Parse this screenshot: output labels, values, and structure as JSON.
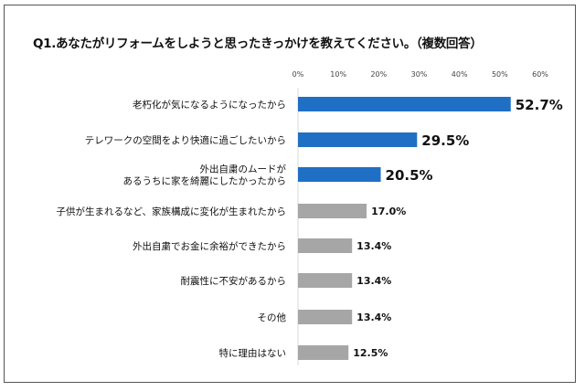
{
  "chart_data": {
    "type": "bar",
    "orientation": "horizontal",
    "title": "Q1.あなたがリフォームをしようと思ったきっかけを教えてください。（複数回答）",
    "categories": [
      [
        "老朽化が気になるようになったから"
      ],
      [
        "テレワークの空間をより快適に過ごしたいから"
      ],
      [
        "外出自粛のムードが",
        "あるうちに家を綺麗にしたかったから"
      ],
      [
        "子供が生まれるなど、家族構成に変化が生まれたから"
      ],
      [
        "外出自粛でお金に余裕ができたから"
      ],
      [
        "耐震性に不安があるから"
      ],
      [
        "その他"
      ],
      [
        "特に理由はない"
      ]
    ],
    "values": [
      52.7,
      29.5,
      20.5,
      17.0,
      13.4,
      13.4,
      13.4,
      12.5
    ],
    "value_labels": [
      "52.7%",
      "29.5%",
      "20.5%",
      "17.0%",
      "13.4%",
      "13.4%",
      "13.4%",
      "12.5%"
    ],
    "highlighted": [
      true,
      true,
      true,
      false,
      false,
      false,
      false,
      false
    ],
    "xlim": [
      0,
      60
    ],
    "xticks": [
      "0%",
      "10%",
      "20%",
      "30%",
      "40%",
      "50%",
      "60%"
    ],
    "tick_values": [
      0,
      10,
      20,
      30,
      40,
      50,
      60
    ],
    "xlabel": "",
    "ylabel": "",
    "colors": {
      "highlight": "#1f6fc5",
      "normal": "#a6a6a6"
    }
  }
}
